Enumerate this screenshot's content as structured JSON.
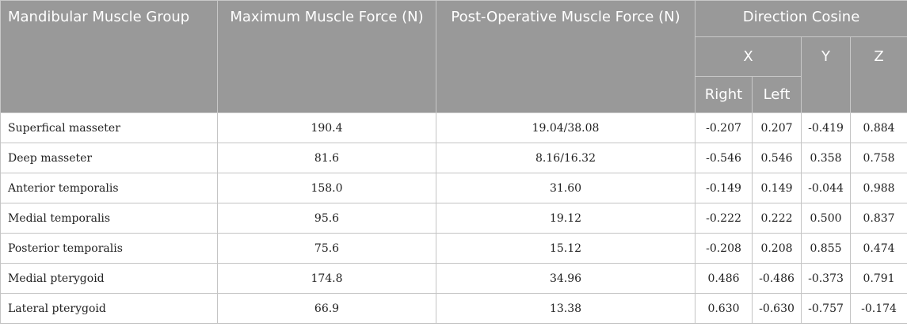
{
  "header": {
    "group": "Mandibular Muscle Group",
    "max_force": "Maximum Muscle Force (N)",
    "postop_force": "Post-Operative Muscle Force (N)",
    "direction_cosine": "Direction Cosine",
    "x": "X",
    "y": "Y",
    "z": "Z",
    "right": "Right",
    "left": "Left"
  },
  "rows": [
    {
      "name": "Superfical masseter",
      "max": "190.4",
      "post": "19.04/38.08",
      "xr": "-0.207",
      "xl": "0.207",
      "y": "-0.419",
      "z": "0.884"
    },
    {
      "name": "Deep masseter",
      "max": "81.6",
      "post": "8.16/16.32",
      "xr": "-0.546",
      "xl": "0.546",
      "y": "0.358",
      "z": "0.758"
    },
    {
      "name": "Anterior temporalis",
      "max": "158.0",
      "post": "31.60",
      "xr": "-0.149",
      "xl": "0.149",
      "y": "-0.044",
      "z": "0.988"
    },
    {
      "name": "Medial temporalis",
      "max": "95.6",
      "post": "19.12",
      "xr": "-0.222",
      "xl": "0.222",
      "y": "0.500",
      "z": "0.837"
    },
    {
      "name": "Posterior temporalis",
      "max": "75.6",
      "post": "15.12",
      "xr": "-0.208",
      "xl": "0.208",
      "y": "0.855",
      "z": "0.474"
    },
    {
      "name": "Medial pterygoid",
      "max": "174.8",
      "post": "34.96",
      "xr": "0.486",
      "xl": "-0.486",
      "y": "-0.373",
      "z": "0.791"
    },
    {
      "name": "Lateral pterygoid",
      "max": "66.9",
      "post": "13.38",
      "xr": "0.630",
      "xl": "-0.630",
      "y": "-0.757",
      "z": "-0.174"
    }
  ]
}
